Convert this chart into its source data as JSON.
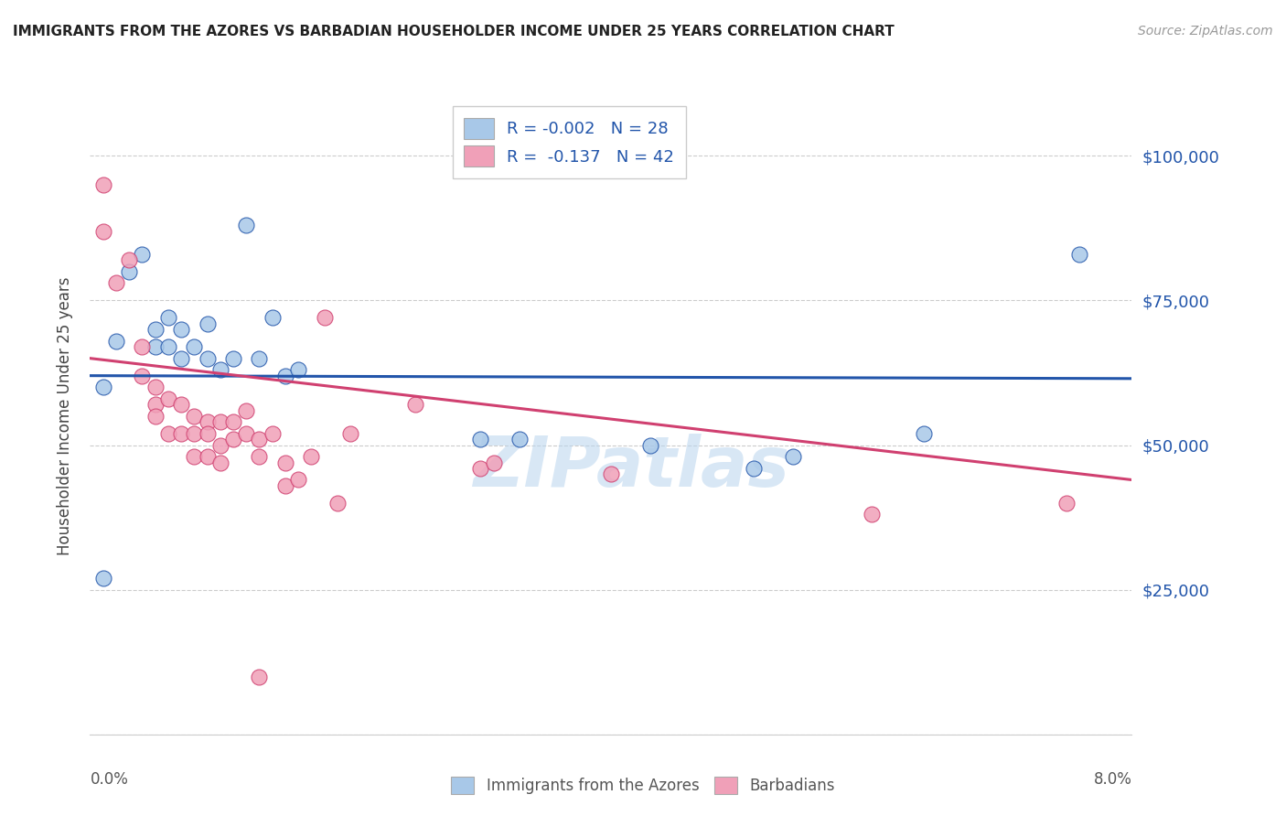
{
  "title": "IMMIGRANTS FROM THE AZORES VS BARBADIAN HOUSEHOLDER INCOME UNDER 25 YEARS CORRELATION CHART",
  "source": "Source: ZipAtlas.com",
  "ylabel": "Householder Income Under 25 years",
  "legend_label1": "Immigrants from the Azores",
  "legend_label2": "Barbadians",
  "R1": "-0.002",
  "N1": "28",
  "R2": "-0.137",
  "N2": "42",
  "color_blue": "#a8c8e8",
  "color_pink": "#f0a0b8",
  "line_blue": "#2255aa",
  "line_pink": "#d04070",
  "watermark": "ZIPatlas",
  "xlim": [
    0.0,
    0.08
  ],
  "ylim": [
    0,
    110000
  ],
  "yticks": [
    0,
    25000,
    50000,
    75000,
    100000
  ],
  "ytick_labels": [
    "",
    "$25,000",
    "$50,000",
    "$75,000",
    "$100,000"
  ],
  "blue_x": [
    0.001,
    0.003,
    0.004,
    0.005,
    0.005,
    0.006,
    0.006,
    0.007,
    0.007,
    0.008,
    0.009,
    0.009,
    0.01,
    0.011,
    0.012,
    0.013,
    0.014,
    0.015,
    0.016,
    0.002,
    0.03,
    0.033,
    0.043,
    0.051,
    0.054,
    0.064,
    0.076,
    0.001
  ],
  "blue_y": [
    60000,
    80000,
    83000,
    70000,
    67000,
    72000,
    67000,
    70000,
    65000,
    67000,
    71000,
    65000,
    63000,
    65000,
    88000,
    65000,
    72000,
    62000,
    63000,
    68000,
    51000,
    51000,
    50000,
    46000,
    48000,
    52000,
    83000,
    27000
  ],
  "pink_x": [
    0.001,
    0.001,
    0.002,
    0.003,
    0.004,
    0.004,
    0.005,
    0.005,
    0.005,
    0.006,
    0.006,
    0.007,
    0.007,
    0.008,
    0.008,
    0.008,
    0.009,
    0.009,
    0.009,
    0.01,
    0.01,
    0.01,
    0.011,
    0.011,
    0.012,
    0.012,
    0.013,
    0.013,
    0.014,
    0.015,
    0.015,
    0.016,
    0.017,
    0.018,
    0.019,
    0.02,
    0.025,
    0.03,
    0.031,
    0.04,
    0.06,
    0.075
  ],
  "pink_y": [
    95000,
    87000,
    78000,
    82000,
    67000,
    62000,
    60000,
    57000,
    55000,
    58000,
    52000,
    57000,
    52000,
    55000,
    52000,
    48000,
    54000,
    52000,
    48000,
    54000,
    50000,
    47000,
    54000,
    51000,
    56000,
    52000,
    51000,
    48000,
    52000,
    47000,
    43000,
    44000,
    48000,
    72000,
    40000,
    52000,
    57000,
    46000,
    47000,
    45000,
    38000,
    40000
  ],
  "pink_special_x": [
    0.013
  ],
  "pink_special_y": [
    10000
  ],
  "blue_line_y_at_0": 62000,
  "blue_line_y_at_008": 61500,
  "pink_line_y_at_0": 65000,
  "pink_line_y_at_008": 44000
}
